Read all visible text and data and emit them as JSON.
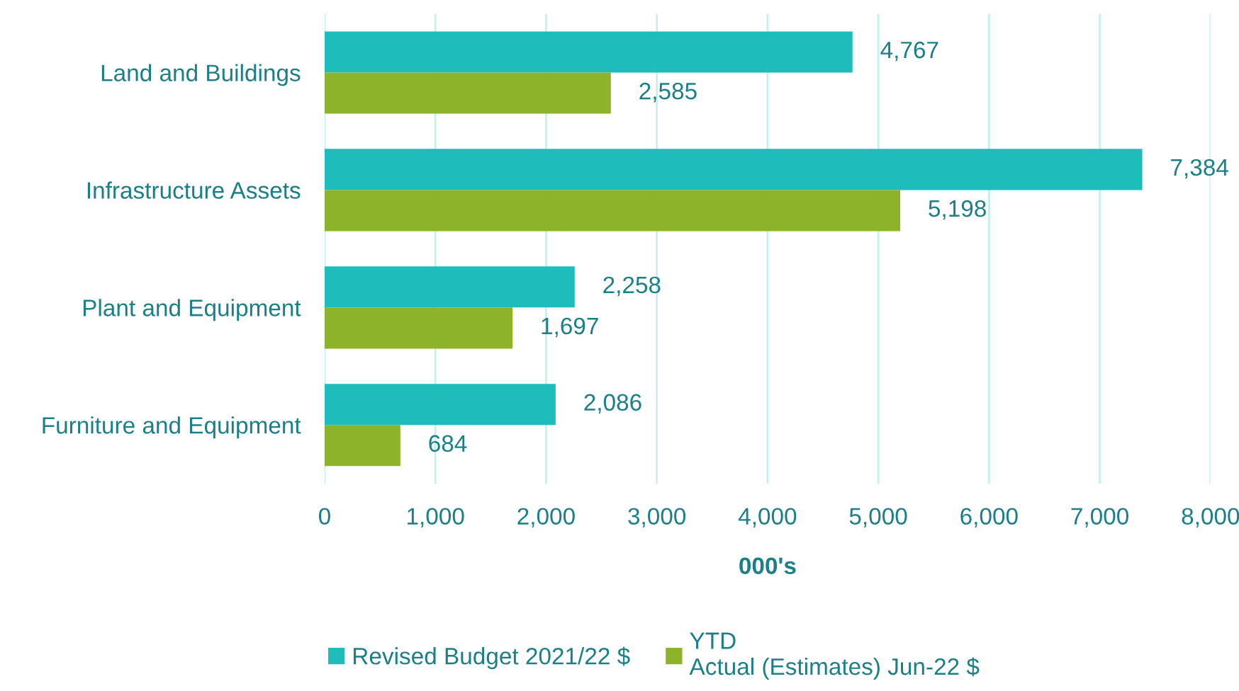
{
  "chart_data": {
    "type": "bar",
    "orientation": "horizontal",
    "xlabel": "000's",
    "categories": [
      "Land and Buildings",
      "Infrastructure Assets",
      "Plant and Equipment",
      "Furniture and Equipment"
    ],
    "series": [
      {
        "name": "Revised Budget 2021/22 $",
        "color": "#1fbcbc",
        "values": [
          4767,
          7384,
          2258,
          2086
        ],
        "value_labels": [
          "4,767",
          "7,384",
          "2,258",
          "2,086"
        ]
      },
      {
        "name": "YTD\nActual (Estimates) Jun-22 $",
        "color": "#8cb329",
        "values": [
          2585,
          5198,
          1697,
          684
        ],
        "value_labels": [
          "2,585",
          "5,198",
          "1,697",
          "684"
        ]
      }
    ],
    "xlim": [
      0,
      8000
    ],
    "xticks": [
      {
        "value": 0,
        "label": "0"
      },
      {
        "value": 1000,
        "label": "1,000"
      },
      {
        "value": 2000,
        "label": "2,000"
      },
      {
        "value": 3000,
        "label": "3,000"
      },
      {
        "value": 4000,
        "label": "4,000"
      },
      {
        "value": 5000,
        "label": "5,000"
      },
      {
        "value": 6000,
        "label": "6,000"
      },
      {
        "value": 7000,
        "label": "7,000"
      },
      {
        "value": 8000,
        "label": "8,000"
      }
    ],
    "grid": "x",
    "legend": "bottom"
  }
}
